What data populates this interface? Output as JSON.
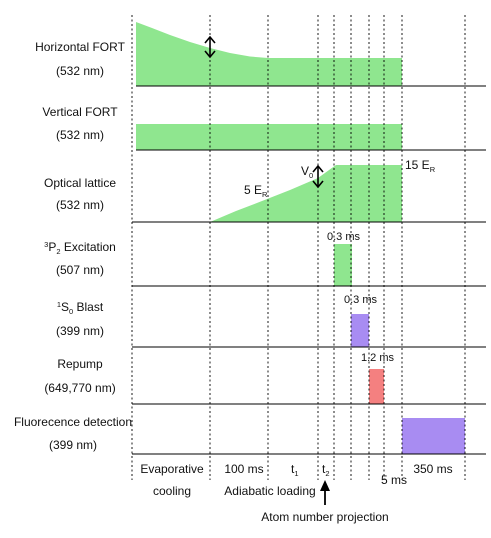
{
  "rows": [
    {
      "id": "horizontal-fort",
      "label": "Horizontal FORT",
      "wavelength": "(532 nm)",
      "color": "#8FE68F"
    },
    {
      "id": "vertical-fort",
      "label": "Vertical FORT",
      "wavelength": "(532 nm)",
      "color": "#8FE68F"
    },
    {
      "id": "optical-lattice",
      "label": "Optical lattice",
      "wavelength": "(532 nm)",
      "color": "#8FE68F"
    },
    {
      "id": "excitation",
      "label_pre": "3",
      "label_mid": "P",
      "label_sub": "2",
      "label_post": " Excitation",
      "wavelength": "(507 nm)",
      "color": "#8FE68F"
    },
    {
      "id": "blast",
      "label_pre": "1",
      "label_mid": "S",
      "label_sub": "0",
      "label_post": " Blast",
      "wavelength": "(399 nm)",
      "color": "#A88CF2"
    },
    {
      "id": "repump",
      "label": "Repump",
      "wavelength": "(649,770 nm)",
      "color": "#F48080"
    },
    {
      "id": "fluorescence",
      "label": "Fluorecence detection",
      "wavelength": "(399 nm)",
      "color": "#A88CF2"
    }
  ],
  "annotations": {
    "lattice_low_main": "5 E",
    "lattice_low_sub": "R",
    "lattice_high_main": "15 E",
    "lattice_high_sub": "R",
    "v0_main": "V",
    "v0_sub": "0",
    "excitation_duration": "0.3 ms",
    "blast_duration": "0.3 ms",
    "repump_duration": "1.2 ms"
  },
  "timeline": {
    "evaporative_1": "Evaporative",
    "evaporative_2": "cooling",
    "adiabatic_duration": "100 ms",
    "adiabatic_label": "Adiabatic loading",
    "t1_main": "t",
    "t1_sub": "1",
    "t2_main": "t",
    "t2_sub": "2",
    "gap_duration": "5 ms",
    "detection_duration": "350 ms",
    "projection_label": "Atom number projection"
  }
}
